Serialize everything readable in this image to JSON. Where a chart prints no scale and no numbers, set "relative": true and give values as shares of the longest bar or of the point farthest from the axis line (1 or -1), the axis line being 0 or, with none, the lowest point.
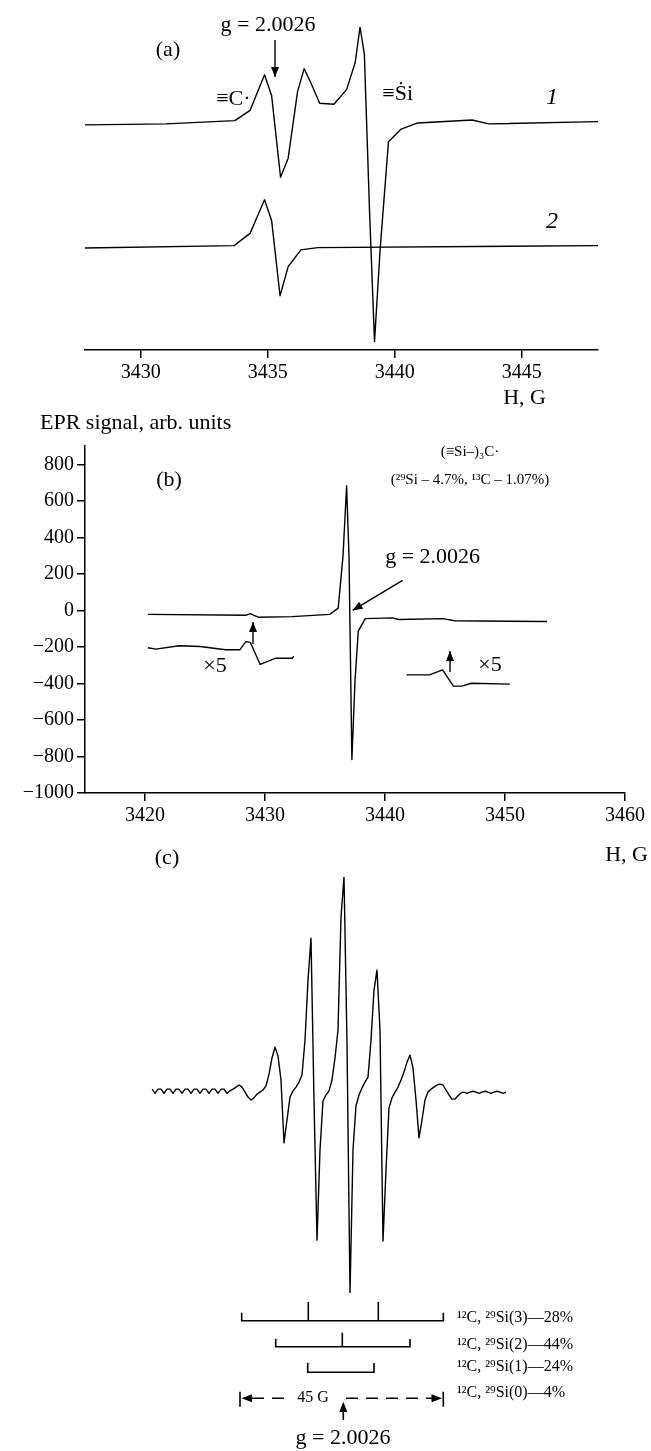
{
  "chart_data": [
    {
      "type": "line",
      "title": "(a)",
      "xlabel": "H, G",
      "xlim": [
        3427.8,
        3448
      ],
      "xticks": [
        3430,
        3435,
        3440,
        3445
      ],
      "relative": true,
      "annotations": [
        "g = 2.0026",
        {
          "text": "≡C·",
          "x": 3434.87,
          "y": 0.852
        },
        {
          "text": "≡Ṡi",
          "x": 3438.8,
          "y": 0.916
        }
      ],
      "series": [
        {
          "name": "1",
          "color": "#000000",
          "x": [
            3427.8,
            3431.0,
            3433.7,
            3434.3,
            3434.87,
            3435.15,
            3435.5,
            3435.8,
            3436.17,
            3436.43,
            3436.7,
            3437.04,
            3437.6,
            3438.1,
            3438.44,
            3438.63,
            3438.8,
            3439.0,
            3439.2,
            3439.42,
            3439.75,
            3440.25,
            3440.9,
            3443.04,
            3443.7,
            3448.0
          ],
          "values": [
            0.697,
            0.7,
            0.71,
            0.742,
            0.852,
            0.787,
            0.535,
            0.594,
            0.8,
            0.871,
            0.826,
            0.764,
            0.761,
            0.806,
            0.89,
            1.0,
            0.916,
            0.439,
            0.026,
            0.31,
            0.645,
            0.684,
            0.703,
            0.712,
            0.7,
            0.707
          ]
        },
        {
          "name": "2",
          "color": "#000000",
          "x": [
            3427.8,
            3433.67,
            3434.3,
            3434.87,
            3435.15,
            3435.48,
            3435.8,
            3436.3,
            3436.96,
            3448.0
          ],
          "values": [
            0.316,
            0.323,
            0.361,
            0.465,
            0.4,
            0.168,
            0.258,
            0.31,
            0.317,
            0.323
          ]
        }
      ]
    },
    {
      "type": "line",
      "title": "(b)",
      "xlabel": "H, G",
      "ylabel": "EPR signal, arb. units",
      "xlim": [
        3415,
        3460
      ],
      "xticks": [
        3420,
        3430,
        3440,
        3450,
        3460
      ],
      "ylim": [
        -1000,
        900
      ],
      "yticks": [
        {
          "value": -1000,
          "label": "−1000"
        },
        {
          "value": -800,
          "label": "−800"
        },
        {
          "value": -600,
          "label": "−600"
        },
        {
          "value": -400,
          "label": "−400"
        },
        {
          "value": -200,
          "label": "−200"
        },
        0,
        200,
        400,
        600,
        800
      ],
      "annotations": [
        "(≡Si–)₃C·",
        "(²⁹Si – 4.7%, ¹³C – 1.07%)",
        {
          "text": "g = 2.0026",
          "x": 3437.3,
          "y": 0
        },
        "×5",
        "×5"
      ],
      "series": [
        {
          "color": "#000000",
          "x": [
            3420.24,
            3428.4,
            3428.77,
            3429.46,
            3432.26,
            3435.4,
            3436.1,
            3436.5,
            3436.8,
            3437.0,
            3437.24,
            3437.5,
            3437.77,
            3438.36,
            3440.6,
            3441.14,
            3444.8,
            3445.8,
            3453.5
          ],
          "values": [
            -22,
            -27,
            -18,
            -38,
            -34,
            -22,
            12,
            297,
            681,
            297,
            -817,
            -388,
            -114,
            -45,
            -41,
            -50,
            -45,
            -57,
            -61
          ]
        },
        {
          "color": "#000000",
          "x": [
            3420.24,
            3420.9,
            3422.85,
            3424.6,
            3426.7,
            3427.9,
            3428.4,
            3428.77,
            3429.6,
            3430.9,
            3432.26,
            3432.4
          ],
          "values": [
            -205,
            -212,
            -194,
            -198,
            -216,
            -216,
            -171,
            -175,
            -296,
            -262,
            -262,
            -251
          ]
        },
        {
          "color": "#000000",
          "x": [
            3441.8,
            3443.7,
            3444.8,
            3445.7,
            3446.4,
            3447.2,
            3450.4
          ],
          "values": [
            -353,
            -353,
            -326,
            -415,
            -415,
            -399,
            -404
          ]
        }
      ]
    },
    {
      "type": "line",
      "title": "(c)",
      "relative": true,
      "tick_labels": false,
      "categories": [
        null,
        null,
        null,
        null,
        null,
        null,
        null,
        null,
        null,
        null,
        null,
        null,
        null,
        null,
        null,
        null,
        null,
        null,
        null,
        null,
        null,
        null,
        null,
        null,
        null,
        null,
        null,
        null,
        null,
        null,
        null,
        null,
        null,
        null,
        null,
        null,
        null,
        null,
        null,
        null,
        null,
        null,
        null,
        null,
        null,
        null,
        null,
        null,
        null,
        null,
        null,
        null,
        null,
        null,
        null,
        null,
        null,
        null,
        null,
        null,
        null,
        null,
        null,
        null,
        null,
        null,
        null,
        null,
        null,
        null,
        null,
        null,
        null,
        null,
        null,
        null,
        null,
        null,
        null,
        null,
        null,
        null,
        null,
        null,
        null,
        null,
        null,
        null,
        null,
        null,
        null,
        null,
        null,
        null,
        null,
        null,
        null,
        null,
        null,
        null,
        null,
        null,
        null,
        null,
        null,
        null,
        null,
        null,
        null,
        null,
        null,
        null,
        null,
        null,
        null,
        null,
        null,
        null,
        null
      ],
      "annotations": [
        "¹²C, ²⁹Si(3)—28%",
        "¹²C, ²⁹Si(2)—44%",
        "¹²C, ²⁹Si(1)—24%",
        "¹²C, ²⁹Si(0)—4%",
        "45 G",
        "g = 2.0026"
      ],
      "series": [
        {
          "color": "#000000",
          "values": [
            0.49,
            0.48,
            0.49,
            0.49,
            0.48,
            0.49,
            0.49,
            0.48,
            0.49,
            0.49,
            0.48,
            0.49,
            0.49,
            0.48,
            0.49,
            0.49,
            0.48,
            0.49,
            0.49,
            0.48,
            0.49,
            0.49,
            0.48,
            0.49,
            0.49,
            0.48,
            0.486,
            0.49,
            0.495,
            0.5,
            0.495,
            0.483,
            0.471,
            0.464,
            0.469,
            0.478,
            0.483,
            0.488,
            0.498,
            0.526,
            0.565,
            0.591,
            0.57,
            0.512,
            0.361,
            0.416,
            0.471,
            0.486,
            0.495,
            0.507,
            0.524,
            0.608,
            0.752,
            0.853,
            0.464,
            0.127,
            0.344,
            0.462,
            0.476,
            0.486,
            0.512,
            0.565,
            0.632,
            0.904,
            1,
            0.601,
            0,
            0.344,
            0.45,
            0.476,
            0.493,
            0.507,
            0.519,
            0.608,
            0.728,
            0.776,
            0.632,
            0.125,
            0.296,
            0.445,
            0.469,
            0.483,
            0.495,
            0.512,
            0.531,
            0.555,
            0.572,
            0.541,
            0.464,
            0.373,
            0.416,
            0.464,
            0.483,
            0.49,
            0.495,
            0.5,
            0.502,
            0.5,
            0.488,
            0.476,
            0.466,
            0.466,
            0.474,
            0.481,
            0.483,
            0.48,
            0.483,
            0.485,
            0.483,
            0.48,
            0.483,
            0.485,
            0.483,
            0.48,
            0.483,
            0.485,
            0.483,
            0.48,
            0.483
          ]
        }
      ]
    }
  ]
}
